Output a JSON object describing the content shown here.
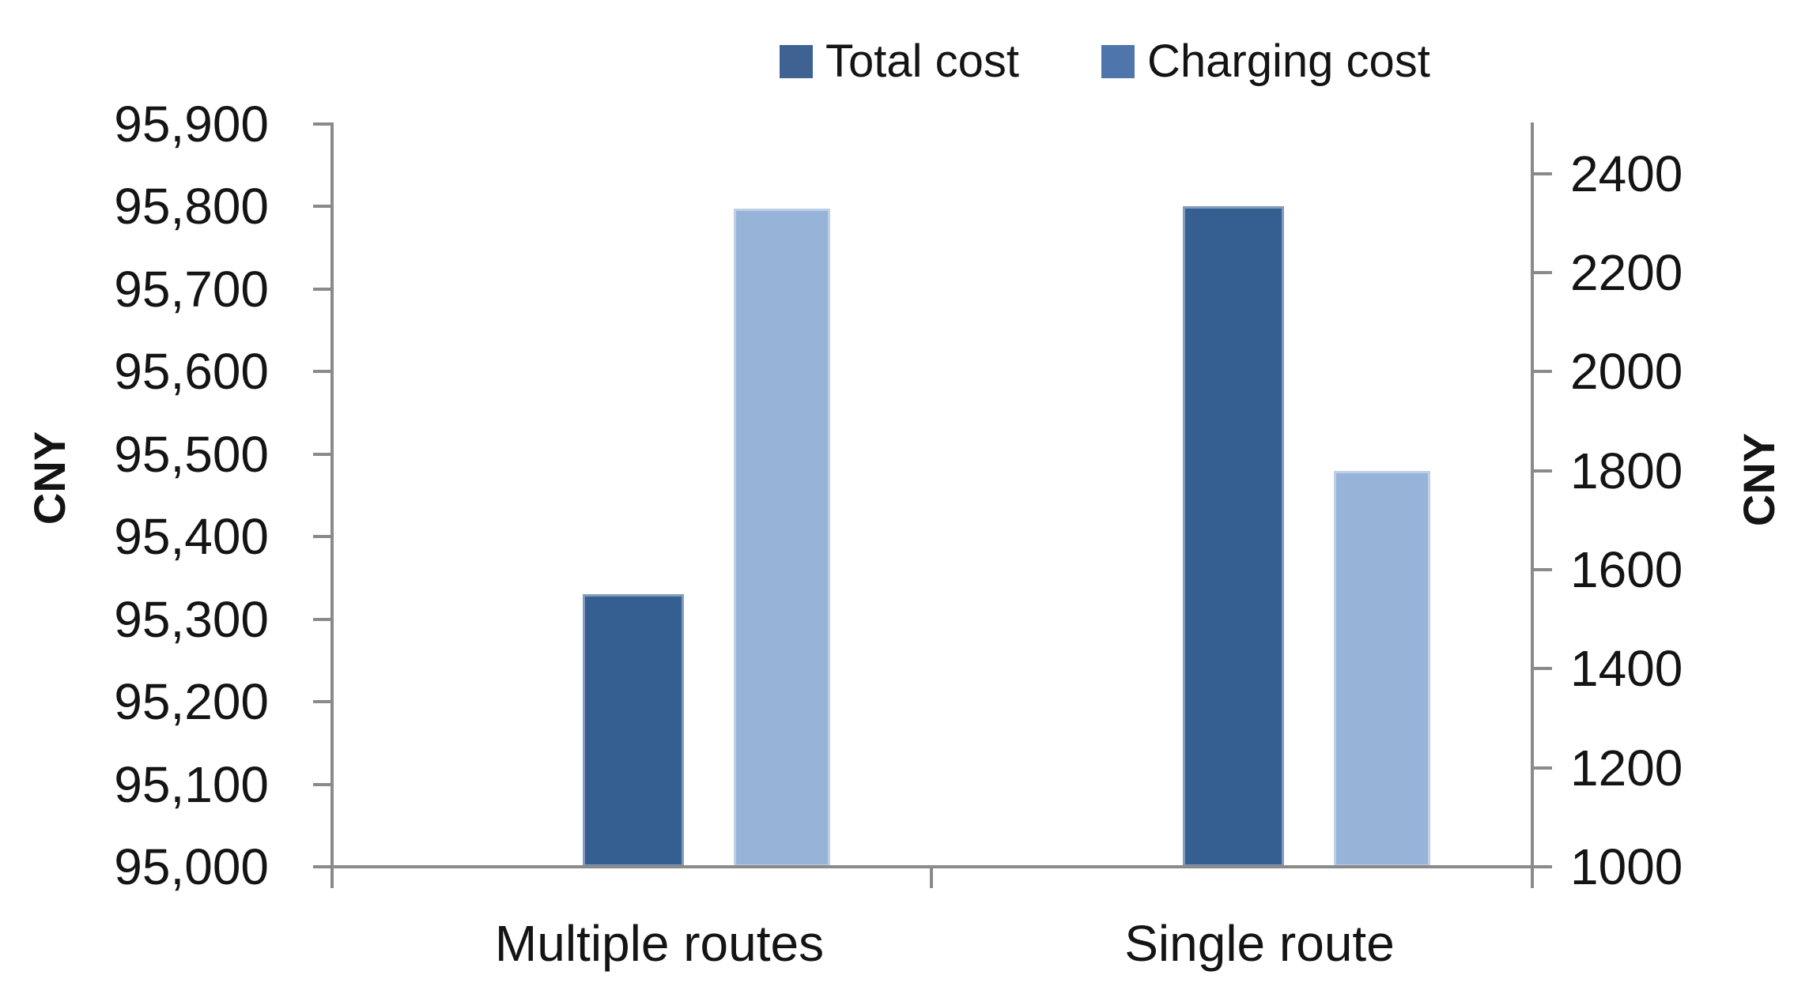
{
  "chart_data": {
    "type": "bar",
    "categories": [
      "Multiple routes",
      "Single route"
    ],
    "series": [
      {
        "name": "Total cost",
        "axis": "left",
        "color": "#365f91",
        "values": [
          95330,
          95800
        ]
      },
      {
        "name": "Charging cost",
        "axis": "right",
        "color": "#97b4d8",
        "values": [
          2330,
          1800
        ]
      }
    ],
    "legend": [
      "Total cost",
      "Charging cost"
    ],
    "legend_position": "top",
    "gridlines": false,
    "left_axis": {
      "label": "CNY",
      "min": 95000,
      "max": 95900,
      "ticks": [
        "95,900",
        "95,800",
        "95,700",
        "95,600",
        "95,500",
        "95,400",
        "95,300",
        "95,200",
        "95,100",
        "95,000"
      ]
    },
    "right_axis": {
      "label": "CNY",
      "min": 1000,
      "max": 2500,
      "ticks": [
        "2400",
        "2200",
        "2000",
        "1800",
        "1600",
        "1400",
        "1200",
        "1000"
      ]
    }
  },
  "colors": {
    "legend_total": "#3e6392",
    "legend_charging": "#4e76ad",
    "bar_total": "#365f91",
    "bar_charging": "#97b4d8",
    "axis_line": "#8a8a8a",
    "text": "#141414"
  }
}
